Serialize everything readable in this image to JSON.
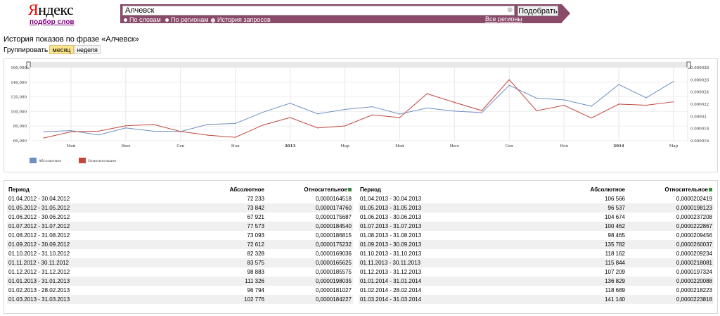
{
  "logo": {
    "text_first": "Я",
    "text_rest": "ндекс",
    "subtitle": "подбор слов"
  },
  "search": {
    "query": "Алчевск",
    "button": "Подобрать",
    "options": [
      "По словам",
      "По регионам",
      "История запросов"
    ],
    "selected_option": "История запросов",
    "regions_link": "Все регионы"
  },
  "page": {
    "heading": "История показов по фразе «Алчевск»",
    "group_label": "Группировать по:",
    "group_month": "месяц",
    "group_week": "неделя"
  },
  "chart_data": {
    "type": "line",
    "x": [
      "04.2012",
      "05.2012",
      "06.2012",
      "07.2012",
      "08.2012",
      "09.2012",
      "10.2012",
      "11.2012",
      "12.2012",
      "01.2013",
      "02.2013",
      "03.2013",
      "04.2013",
      "05.2013",
      "06.2013",
      "07.2013",
      "08.2013",
      "09.2013",
      "10.2013",
      "11.2013",
      "12.2013",
      "01.2014",
      "02.2014",
      "03.2014"
    ],
    "x_tick_labels": [
      "Май",
      "Июл",
      "Сен",
      "Ноя",
      "2013",
      "Мар",
      "Май",
      "Июл",
      "Сен",
      "Ноя",
      "2014",
      "Мар"
    ],
    "y_left_ticks": [
      "60,000",
      "80,000",
      "100,000",
      "120,000",
      "140,000",
      "160,000"
    ],
    "y_right_ticks": [
      "0.000016",
      "0.000018",
      "0.00002",
      "0.000022",
      "0.000024",
      "0.000026",
      "0.000028"
    ],
    "ylim_left": [
      60000,
      160000
    ],
    "ylim_right": [
      1.6e-05,
      2.8e-05
    ],
    "series": [
      {
        "name": "Абсолютное",
        "axis": "left",
        "color": "#6f8fc4",
        "values": [
          72233,
          73842,
          67921,
          77573,
          73093,
          72612,
          82328,
          83575,
          98883,
          111326,
          96794,
          102776,
          106566,
          96537,
          104674,
          100462,
          98465,
          135782,
          118162,
          115844,
          107209,
          136829,
          118689,
          141140
        ]
      },
      {
        "name": "Относительное",
        "axis": "right",
        "color": "#c2463c",
        "values": [
          1.64518e-05,
          1.7476e-05,
          1.75687e-05,
          1.8454e-05,
          1.86815e-05,
          1.75232e-05,
          1.69036e-05,
          1.65625e-05,
          1.85575e-05,
          1.98035e-05,
          1.81027e-05,
          1.84227e-05,
          2.02419e-05,
          1.98123e-05,
          2.37208e-05,
          2.22867e-05,
          2.09456e-05,
          2.60037e-05,
          2.09234e-05,
          2.18081e-05,
          1.97324e-05,
          2.20088e-05,
          2.18223e-05,
          2.23818e-05
        ]
      }
    ],
    "grid": true,
    "legend": "bottom-left"
  },
  "table": {
    "headers": {
      "period": "Период",
      "absolute": "Абсолютное",
      "relative": "Относительное"
    },
    "left": [
      {
        "period": "01.04.2012 - 30.04.2012",
        "absolute": "72 233",
        "relative": "0,0000164518"
      },
      {
        "period": "01.05.2012 - 31.05.2012",
        "absolute": "73 842",
        "relative": "0,0000174760"
      },
      {
        "period": "01.06.2012 - 30.06.2012",
        "absolute": "67 921",
        "relative": "0,0000175687"
      },
      {
        "period": "01.07.2012 - 31.07.2012",
        "absolute": "77 573",
        "relative": "0,0000184540"
      },
      {
        "period": "01.08.2012 - 31.08.2012",
        "absolute": "73 093",
        "relative": "0,0000186815"
      },
      {
        "period": "01.09.2012 - 30.09.2012",
        "absolute": "72 612",
        "relative": "0,0000175232"
      },
      {
        "period": "01.10.2012 - 31.10.2012",
        "absolute": "82 328",
        "relative": "0,0000169036"
      },
      {
        "period": "01.11.2012 - 30.11.2012",
        "absolute": "83 575",
        "relative": "0,0000165625"
      },
      {
        "period": "01.12.2012 - 31.12.2012",
        "absolute": "98 883",
        "relative": "0,0000185575"
      },
      {
        "period": "01.01.2013 - 31.01.2013",
        "absolute": "111 326",
        "relative": "0,0000198035"
      },
      {
        "period": "01.02.2013 - 28.02.2013",
        "absolute": "96 794",
        "relative": "0,0000181027"
      },
      {
        "period": "01.03.2013 - 31.03.2013",
        "absolute": "102 776",
        "relative": "0,0000184227"
      }
    ],
    "right": [
      {
        "period": "01.04.2013 - 30.04.2013",
        "absolute": "106 566",
        "relative": "0,0000202419"
      },
      {
        "period": "01.05.2013 - 31.05.2013",
        "absolute": "96 537",
        "relative": "0,0000198123"
      },
      {
        "period": "01.06.2013 - 30.06.2013",
        "absolute": "104 674",
        "relative": "0,0000237208"
      },
      {
        "period": "01.07.2013 - 31.07.2013",
        "absolute": "100 462",
        "relative": "0,0000222867"
      },
      {
        "period": "01.08.2013 - 31.08.2013",
        "absolute": "98 465",
        "relative": "0,0000209456"
      },
      {
        "period": "01.09.2013 - 30.09.2013",
        "absolute": "135 782",
        "relative": "0,0000260037"
      },
      {
        "period": "01.10.2013 - 31.10.2013",
        "absolute": "118 162",
        "relative": "0,0000209234"
      },
      {
        "period": "01.11.2013 - 30.11.2013",
        "absolute": "115 844",
        "relative": "0,0000218081"
      },
      {
        "period": "01.12.2013 - 31.12.2013",
        "absolute": "107 209",
        "relative": "0,0000197324"
      },
      {
        "period": "01.01.2014 - 31.01.2014",
        "absolute": "136 829",
        "relative": "0,0000220088"
      },
      {
        "period": "01.02.2014 - 28.02.2014",
        "absolute": "118 689",
        "relative": "0,0000218223"
      },
      {
        "period": "01.03.2014 - 31.03.2014",
        "absolute": "141 140",
        "relative": "0,0000223818"
      }
    ]
  }
}
